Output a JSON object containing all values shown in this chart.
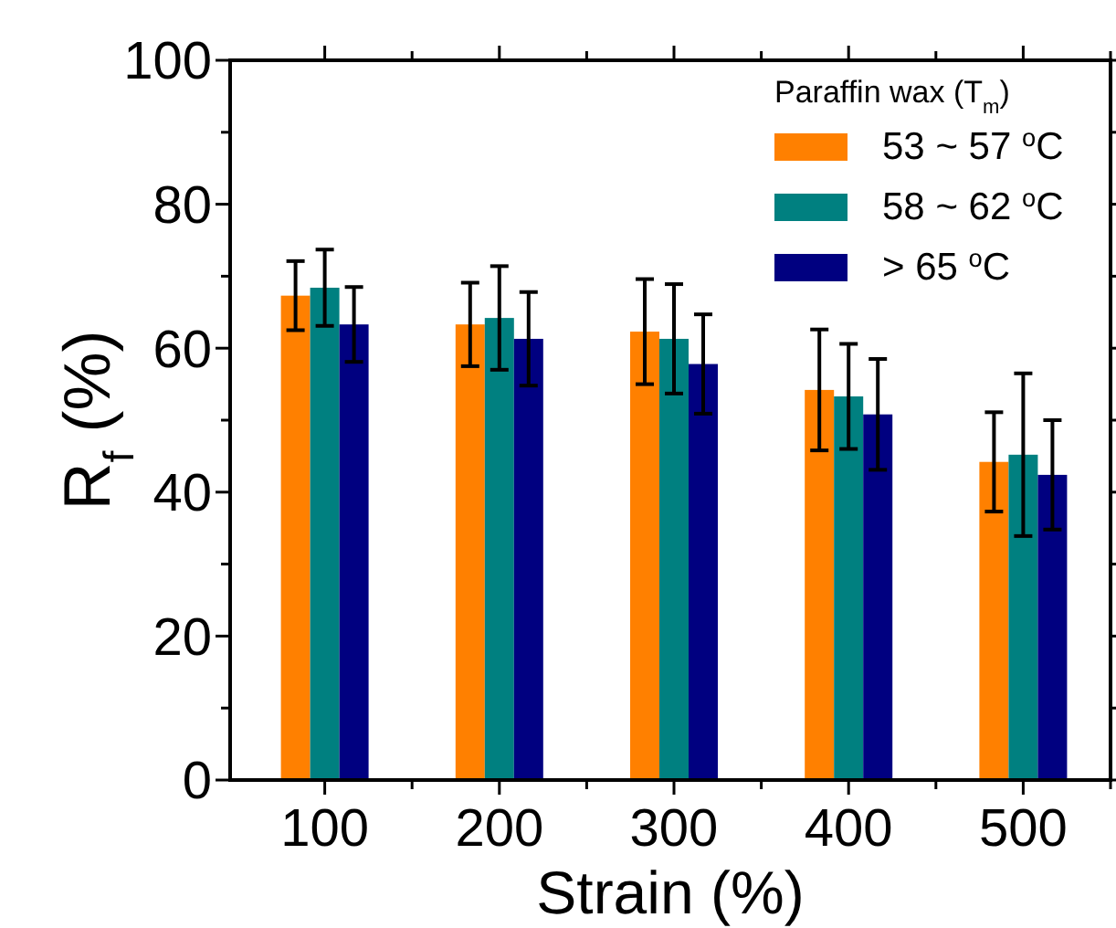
{
  "chart_data": {
    "type": "bar",
    "xlabel": "Strain (%)",
    "ylabel": "R$_{f}$ (%)",
    "legend_title": "Paraffin wax (T$_{m}$)",
    "categories": [
      "100",
      "200",
      "300",
      "400",
      "500"
    ],
    "series": [
      {
        "name": "53 ~ 57 $^{o}$C",
        "color": "#ff8000",
        "values": [
          67.3,
          63.3,
          62.3,
          54.2,
          44.2
        ],
        "errors": [
          4.8,
          5.8,
          7.3,
          8.4,
          6.9
        ]
      },
      {
        "name": "58 ~ 62 $^{o}$C",
        "color": "#008080",
        "values": [
          68.4,
          64.2,
          61.3,
          53.3,
          45.2
        ],
        "errors": [
          5.3,
          7.2,
          7.6,
          7.3,
          11.3
        ]
      },
      {
        "name": "> 65 $^{o}$C",
        "color": "#000080",
        "values": [
          63.3,
          61.3,
          57.8,
          50.8,
          42.4
        ],
        "errors": [
          5.2,
          6.5,
          6.9,
          7.7,
          7.6
        ]
      }
    ],
    "ylim": [
      0,
      100
    ],
    "yticks": [
      0,
      {
        "value": 10,
        "label": null
      },
      20,
      {
        "value": 30,
        "label": null
      },
      40,
      {
        "value": 50,
        "label": null
      },
      60,
      {
        "value": 70,
        "label": null
      },
      80,
      {
        "value": 90,
        "label": null
      },
      100
    ],
    "legend": "top right",
    "grid": false
  }
}
